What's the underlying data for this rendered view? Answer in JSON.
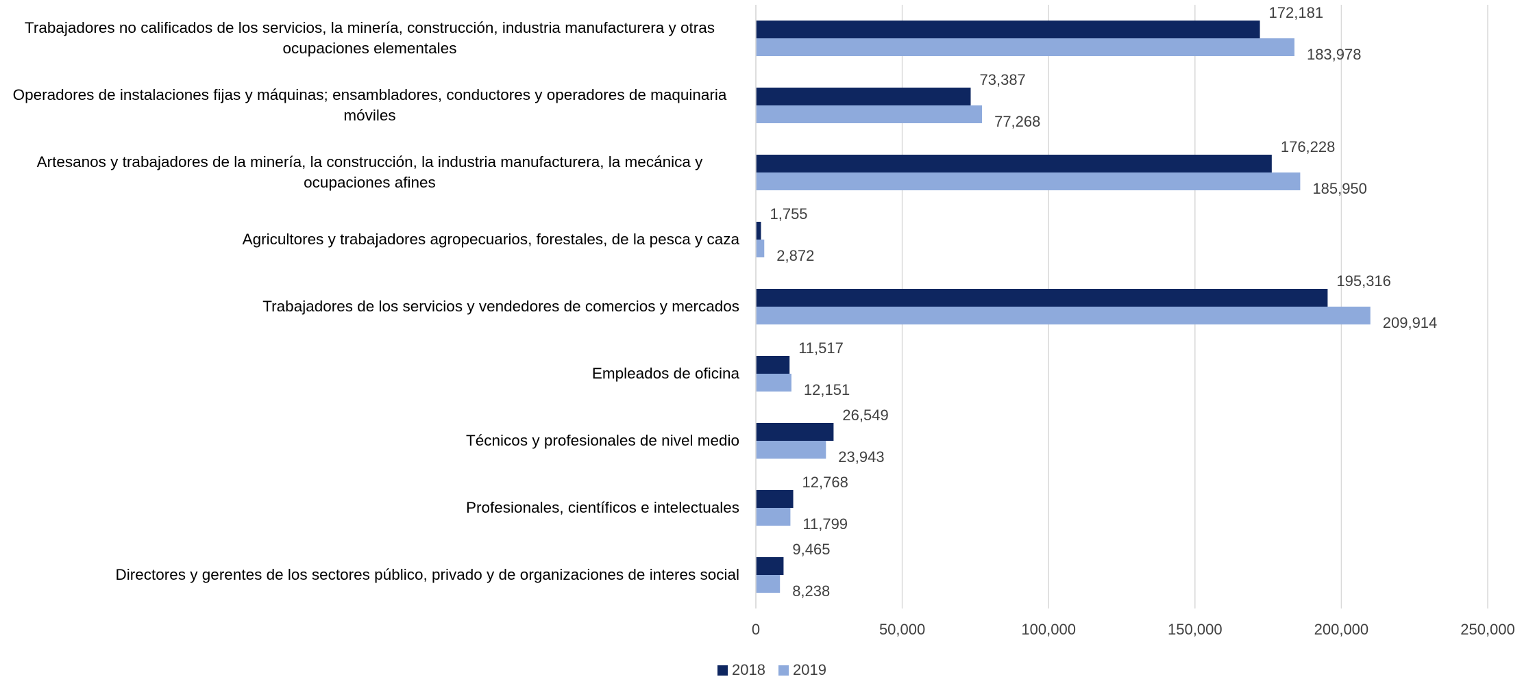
{
  "chart_data": {
    "type": "bar",
    "orientation": "horizontal",
    "categories": [
      "Trabajadores no calificados de los servicios, la minería, construcción, industria manufacturera y otras ocupaciones elementales",
      "Operadores de instalaciones fijas y máquinas; ensambladores, conductores y operadores de maquinaria móviles",
      "Artesanos y trabajadores de la minería, la construcción, la industria manufacturera,  la mecánica y ocupaciones afines",
      "Agricultores y trabajadores agropecuarios,  forestales, de la pesca y caza",
      "Trabajadores de los servicios y vendedores de comercios y mercados",
      "Empleados de oficina",
      "Técnicos y profesionales de nivel medio",
      "Profesionales, científicos e intelectuales",
      "Directores y gerentes de los sectores público, privado y de organizaciones de interes social"
    ],
    "series": [
      {
        "name": "2018",
        "color": "#0e2660",
        "values": [
          172181,
          73387,
          176228,
          1755,
          195316,
          11517,
          26549,
          12768,
          9465
        ],
        "value_labels": [
          "172,181",
          "73,387",
          "176,228",
          "1,755",
          "195,316",
          "11,517",
          "26,549",
          "12,768",
          "9,465"
        ]
      },
      {
        "name": "2019",
        "color": "#8eaadc",
        "values": [
          183978,
          77268,
          185950,
          2872,
          209914,
          12151,
          23943,
          11799,
          8238
        ],
        "value_labels": [
          "183,978",
          "77,268",
          "185,950",
          "2,872",
          "209,914",
          "12,151",
          "23,943",
          "11,799",
          "8,238"
        ]
      }
    ],
    "xlim": [
      0,
      250000
    ],
    "xticks": [
      0,
      {
        "value": 50000,
        "label": "50,000"
      },
      {
        "value": 100000,
        "label": "100,000"
      },
      {
        "value": 150000,
        "label": "150,000"
      },
      {
        "value": 200000,
        "label": "200,000"
      },
      {
        "value": 250000,
        "label": "250,000"
      }
    ],
    "grid": true,
    "legend": "bottom"
  }
}
